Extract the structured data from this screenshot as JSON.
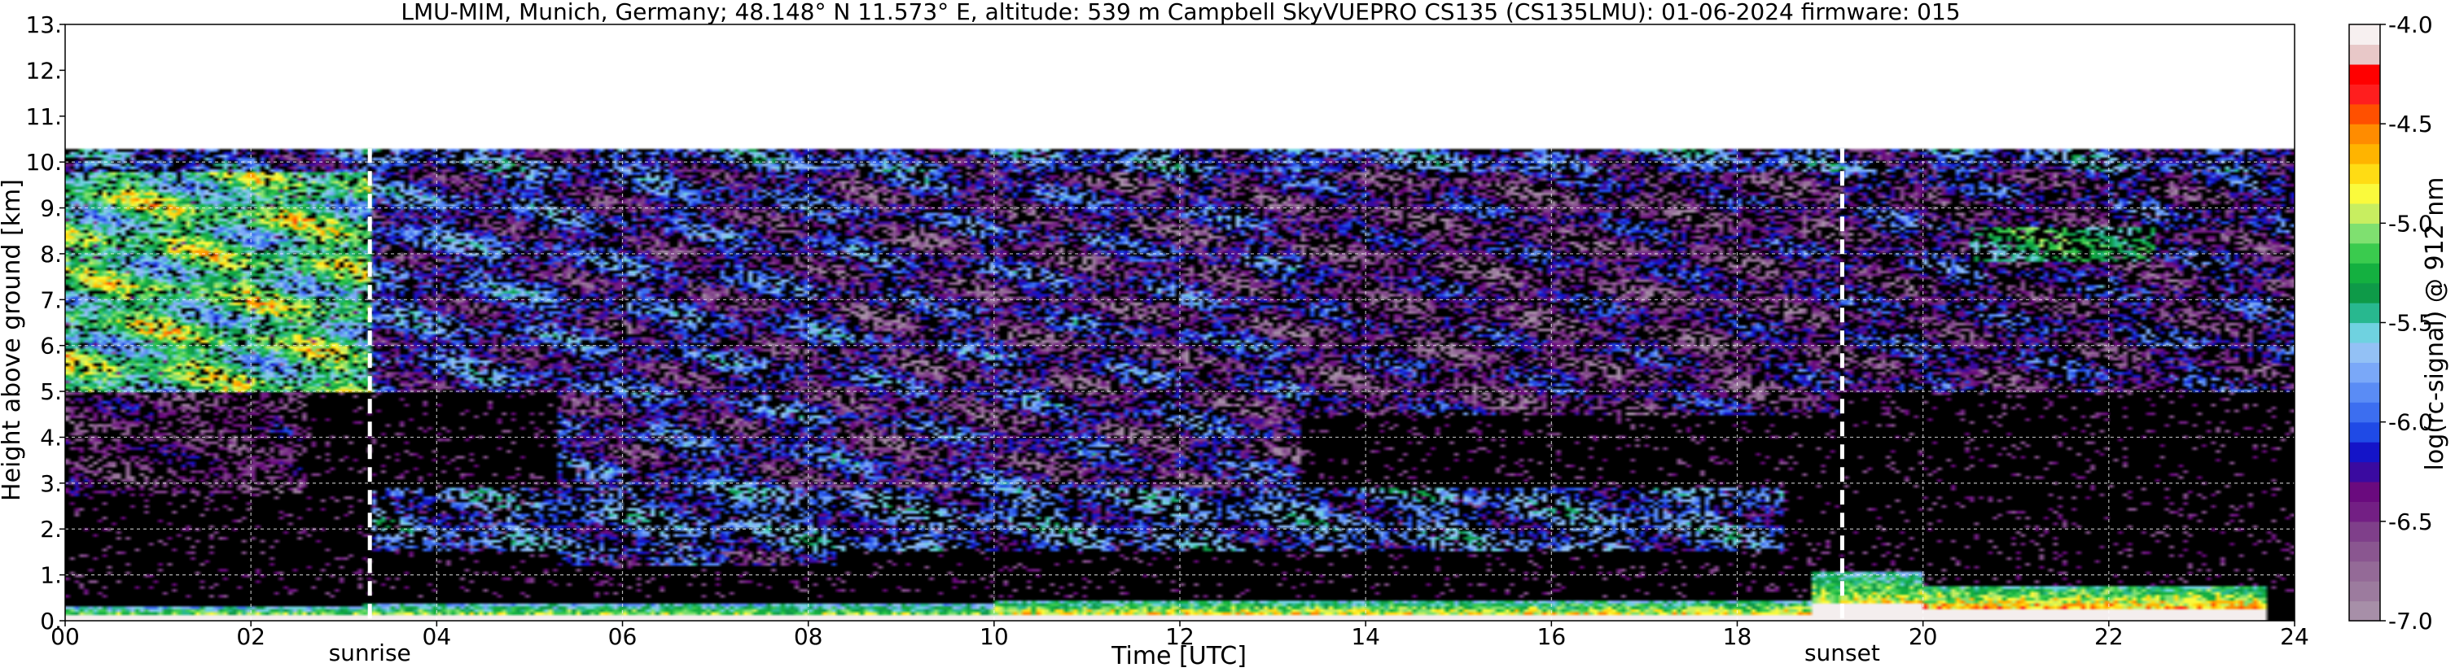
{
  "chart_data": {
    "type": "heatmap",
    "title": "LMU-MIM, Munich, Germany; 48.148° N 11.573° E, altitude: 539 m    Campbell SkyVUEPRO CS135 (CS135LMU): 01-06-2024    firmware: 015",
    "xlabel": "Time [UTC]",
    "ylabel": "Height above ground [km]",
    "xlim": [
      0,
      24
    ],
    "ylim": [
      0,
      13
    ],
    "x_ticks": [
      0,
      2,
      4,
      6,
      8,
      10,
      12,
      14,
      16,
      18,
      20,
      22,
      24
    ],
    "x_tick_labels": [
      "00",
      "02",
      "04",
      "06",
      "08",
      "10",
      "12",
      "14",
      "16",
      "18",
      "20",
      "22",
      "24"
    ],
    "y_ticks": [
      0,
      1,
      2,
      3,
      4,
      5,
      6,
      7,
      8,
      9,
      10,
      11,
      12,
      13
    ],
    "y_tick_labels": [
      "0.",
      "1.",
      "2.",
      "3.",
      "4.",
      "5.",
      "6.",
      "7.",
      "8.",
      "9.",
      "10.",
      "11.",
      "12.",
      "13."
    ],
    "grid": true,
    "data_top_km": 10.3,
    "colorbar": {
      "label": "log(rc-signal) @ 912 nm",
      "range": [
        -7.0,
        -4.0
      ],
      "ticks": [
        -7.0,
        -6.5,
        -6.0,
        -5.5,
        -5.0,
        -4.5,
        -4.0
      ],
      "tick_labels": [
        "-7.0",
        "-6.5",
        "-6.0",
        "-5.5",
        "-5.0",
        "-4.5",
        "-4.0"
      ],
      "colors": [
        "#a78fa8",
        "#9c7b9e",
        "#946a97",
        "#8a5690",
        "#7f3f8a",
        "#731f84",
        "#6a0a7e",
        "#3a0aa0",
        "#1414c8",
        "#1f4ae6",
        "#3c6ef0",
        "#5a8cf5",
        "#7aa8f8",
        "#93c1f5",
        "#6fd2e0",
        "#28b88f",
        "#0e9a48",
        "#14b040",
        "#3acb4e",
        "#7fe070",
        "#c8ee60",
        "#fafa3c",
        "#ffdc14",
        "#ffb400",
        "#ff8c00",
        "#ff5000",
        "#ff1e1e",
        "#ff0000",
        "#e8c8c8",
        "#f7f0f0"
      ]
    },
    "annotations": [
      {
        "label": "sunrise",
        "x": 3.28
      },
      {
        "label": "sunset",
        "x": 19.13
      }
    ],
    "regions": [
      {
        "x0": 0.0,
        "x1": 3.3,
        "y0": 5.0,
        "y1": 9.8,
        "level": -5.3,
        "amp": 0.55,
        "density": 0.85
      },
      {
        "x0": 0.0,
        "x1": 2.6,
        "y0": 2.7,
        "y1": 5.0,
        "level": -6.5,
        "amp": 0.3,
        "density": 0.35
      },
      {
        "x0": 3.3,
        "x1": 5.3,
        "y0": 5.0,
        "y1": 10.2,
        "level": -6.1,
        "amp": 0.5,
        "density": 0.6
      },
      {
        "x0": 5.3,
        "x1": 8.3,
        "y0": 1.2,
        "y1": 10.2,
        "level": -6.2,
        "amp": 0.5,
        "density": 0.55
      },
      {
        "x0": 8.3,
        "x1": 13.3,
        "y0": 2.8,
        "y1": 10.2,
        "level": -6.3,
        "amp": 0.55,
        "density": 0.55
      },
      {
        "x0": 13.3,
        "x1": 19.1,
        "y0": 4.5,
        "y1": 10.2,
        "level": -6.4,
        "amp": 0.45,
        "density": 0.5
      },
      {
        "x0": 19.1,
        "x1": 24.0,
        "y0": 5.0,
        "y1": 10.2,
        "level": -6.3,
        "amp": 0.45,
        "density": 0.45
      },
      {
        "x0": 20.5,
        "x1": 22.5,
        "y0": 7.8,
        "y1": 8.6,
        "level": -5.3,
        "amp": 0.3,
        "density": 0.5
      },
      {
        "x0": 3.3,
        "x1": 18.5,
        "y0": 1.5,
        "y1": 2.9,
        "level": -5.9,
        "amp": 0.4,
        "density": 0.45
      },
      {
        "x0": 0.0,
        "x1": 24.0,
        "y0": 9.8,
        "y1": 10.3,
        "level": -6.0,
        "amp": 0.5,
        "density": 0.55
      }
    ],
    "surface_layer": [
      {
        "x0": 0.0,
        "x1": 3.2,
        "top": 0.3,
        "level": -4.5
      },
      {
        "x0": 3.2,
        "x1": 10.0,
        "top": 0.4,
        "level": -4.6
      },
      {
        "x0": 10.0,
        "x1": 18.8,
        "top": 0.45,
        "level": -4.4
      },
      {
        "x0": 18.8,
        "x1": 20.0,
        "top": 1.1,
        "level": -4.4
      },
      {
        "x0": 20.0,
        "x1": 23.7,
        "top": 0.75,
        "level": -4.2
      }
    ]
  }
}
